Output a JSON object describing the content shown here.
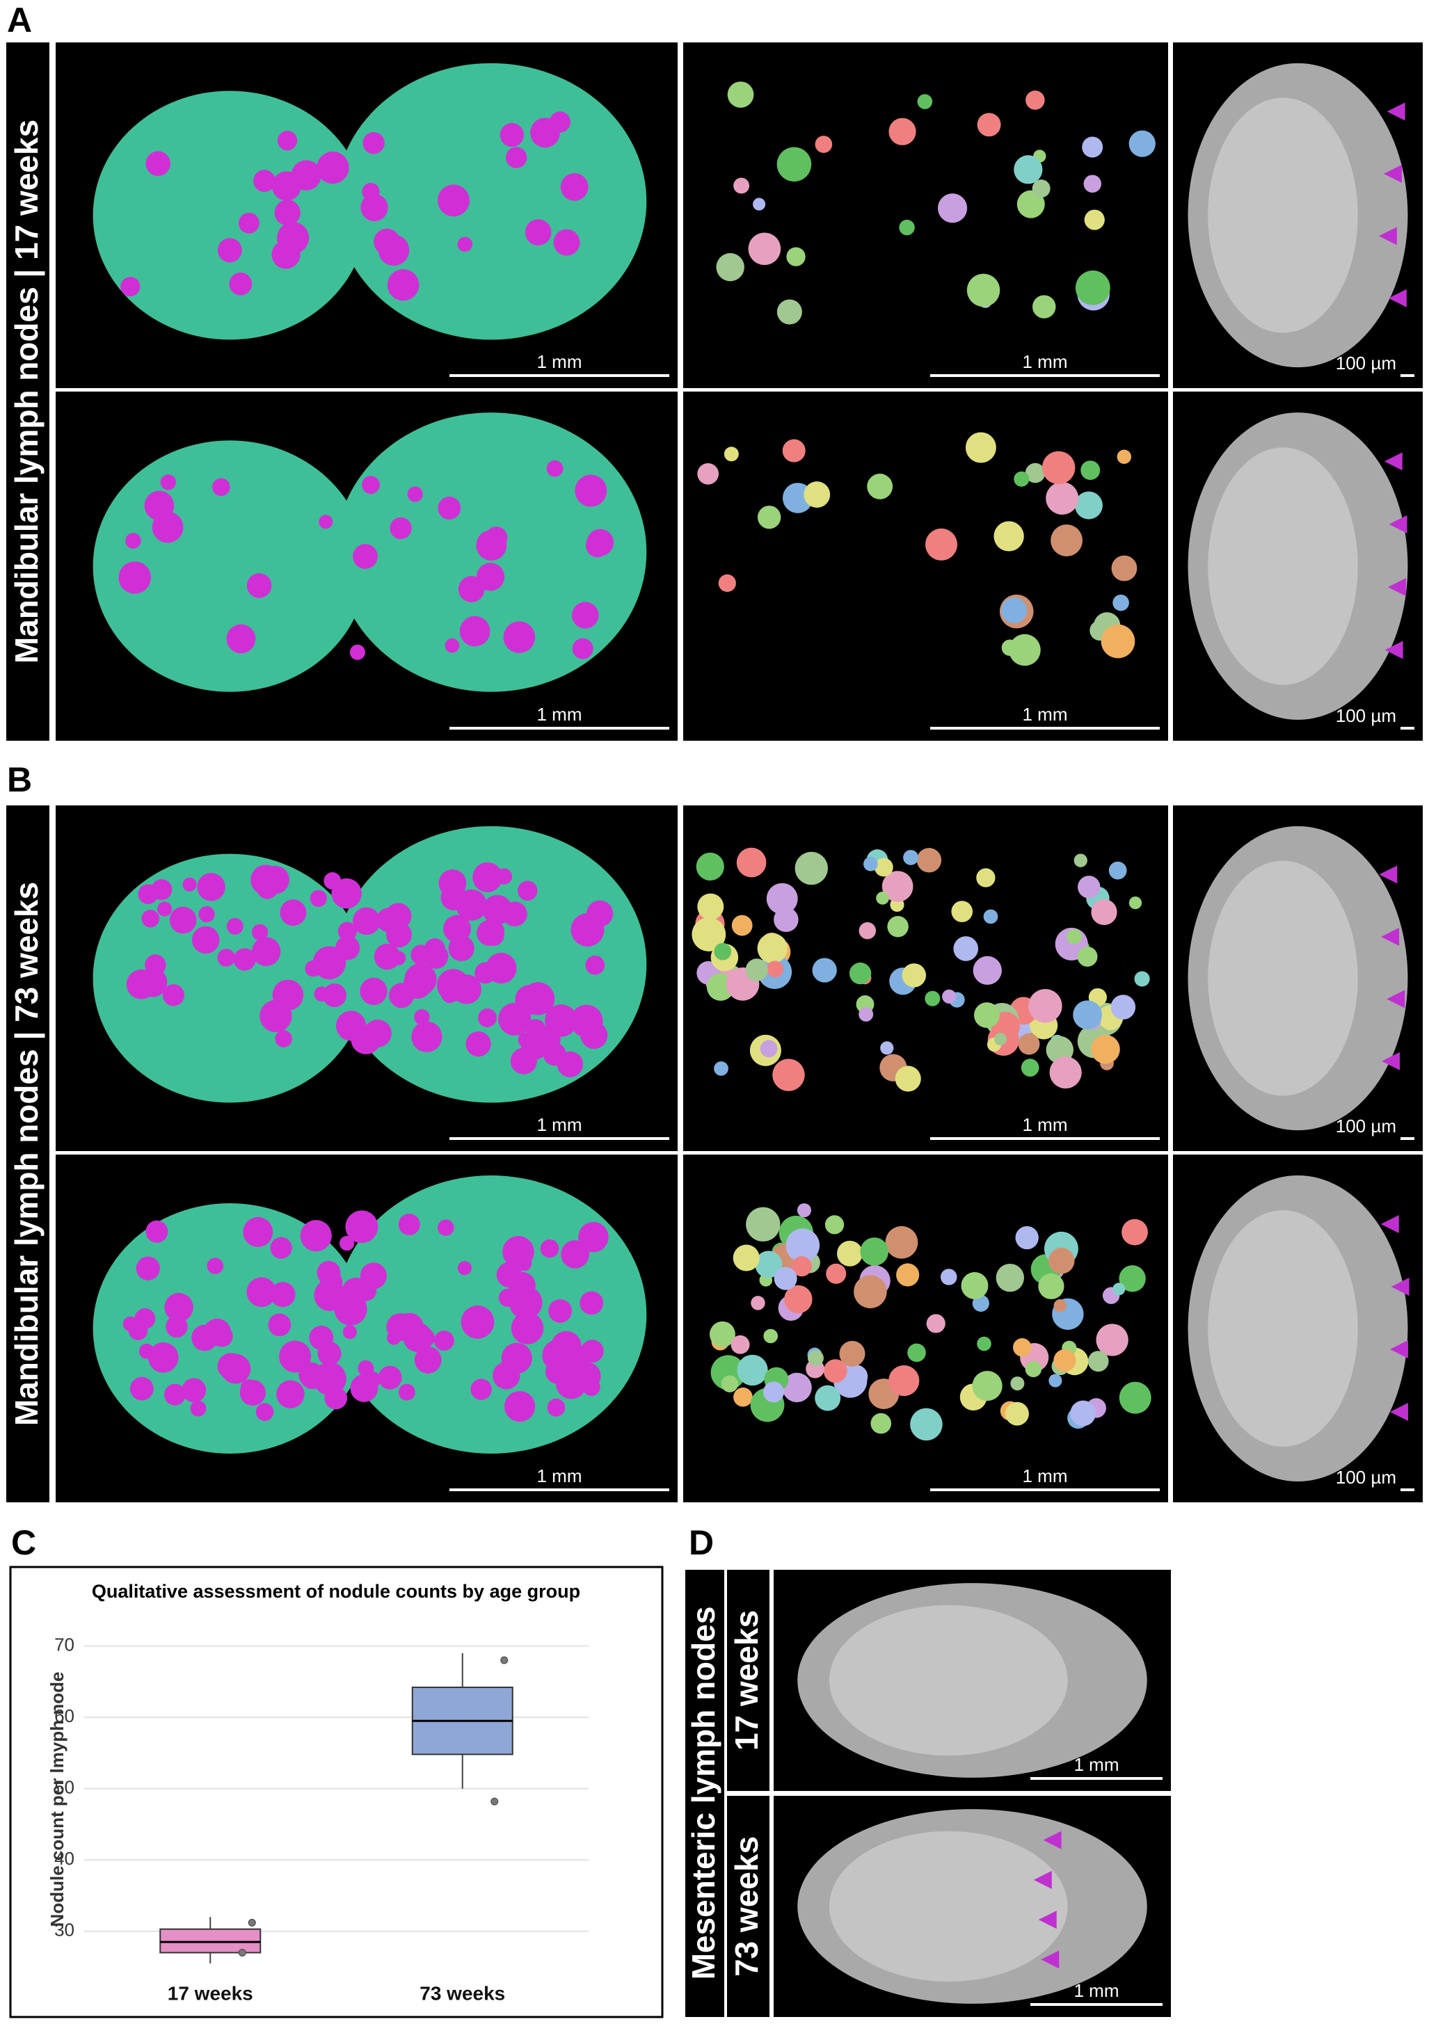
{
  "figure": {
    "panel_labels": [
      "A",
      "B",
      "C",
      "D"
    ],
    "row_labels": [
      "Mandibular lymph nodes | 17 weeks",
      "Mandibular lymph nodes | 73 weeks",
      "Mesenteric lymph nodes",
      "17 weeks",
      "73 weeks"
    ],
    "scale_bars": [
      "1 mm",
      "1 mm",
      "100 µm",
      "1 mm",
      "1 mm",
      "100 µm",
      "1 mm",
      "1 mm",
      "100 µm",
      "1 mm",
      "1 mm",
      "100 µm",
      "1 mm",
      "1 mm"
    ]
  },
  "chart_data": {
    "type": "box",
    "title": "Qualitative assessment of nodule counts by age group",
    "y_label": "Nodule count per lmyph node",
    "categories": [
      "17 weeks",
      "73 weeks"
    ],
    "boxes": [
      {
        "low": 25.5,
        "q1": 27,
        "median": 28.5,
        "q3": 30.3,
        "high": 32,
        "points": [
          31.2,
          27
        ],
        "color": "#e58fc7"
      },
      {
        "low": 50,
        "q1": 54.8,
        "median": 59.5,
        "q3": 64.2,
        "high": 69,
        "points": [
          68,
          48.2
        ],
        "color": "#8fa7d6"
      }
    ],
    "ylim": [
      25,
      72
    ],
    "yticks": [
      30,
      40,
      50,
      60,
      70
    ],
    "grid": true
  }
}
